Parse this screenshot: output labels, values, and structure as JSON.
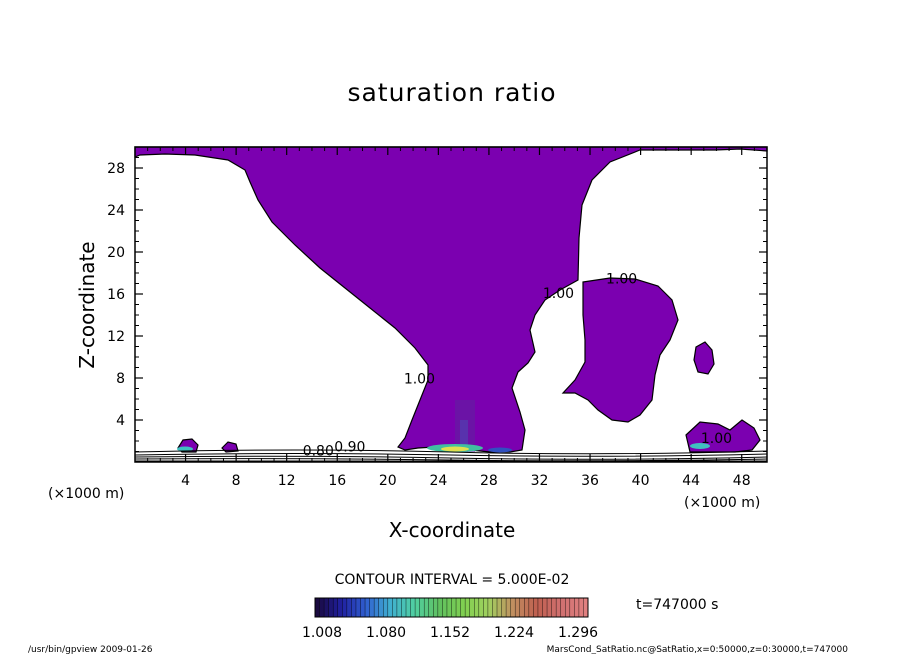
{
  "chart_data": {
    "type": "heatmap",
    "title": "saturation ratio",
    "xlabel": "X-coordinate",
    "ylabel": "Z-coordinate",
    "x_unit": "(×1000 m)",
    "y_unit": "(×1000 m)",
    "xlim": [
      0,
      50
    ],
    "ylim": [
      0,
      30
    ],
    "x_ticks": [
      4,
      8,
      12,
      16,
      20,
      24,
      28,
      32,
      36,
      40,
      44,
      48
    ],
    "y_ticks": [
      4,
      8,
      12,
      16,
      20,
      24,
      28
    ],
    "contour_interval_label": "CONTOUR INTERVAL = 5.000E-02",
    "contour_labels": [
      {
        "text": "1.00",
        "x": 38.5,
        "y": 17.0
      },
      {
        "text": "1.00",
        "x": 33.5,
        "y": 15.6
      },
      {
        "text": "1.00",
        "x": 22.5,
        "y": 7.5
      },
      {
        "text": "1.00",
        "x": 46.0,
        "y": 1.8
      },
      {
        "text": "0.90",
        "x": 17.0,
        "y": 1.0
      },
      {
        "text": "0.80",
        "x": 14.5,
        "y": 0.6
      }
    ],
    "colorbar": {
      "ticks": [
        "1.008",
        "1.080",
        "1.152",
        "1.224",
        "1.296"
      ],
      "min": 1.008,
      "max": 1.35,
      "colors": [
        "#1a0a40",
        "#2020a0",
        "#3060d0",
        "#40b0d0",
        "#50d0a0",
        "#60c060",
        "#80d050",
        "#a0d060",
        "#c09060",
        "#c06050",
        "#d07070",
        "#e08080"
      ]
    },
    "fill_color": "#7b00b0",
    "time_label": "t=747000 s"
  },
  "footer": {
    "left": "/usr/bin/gpview  2009-01-26",
    "right": "MarsCond_SatRatio.nc@SatRatio,x=0:50000,z=0:30000,t=747000"
  }
}
